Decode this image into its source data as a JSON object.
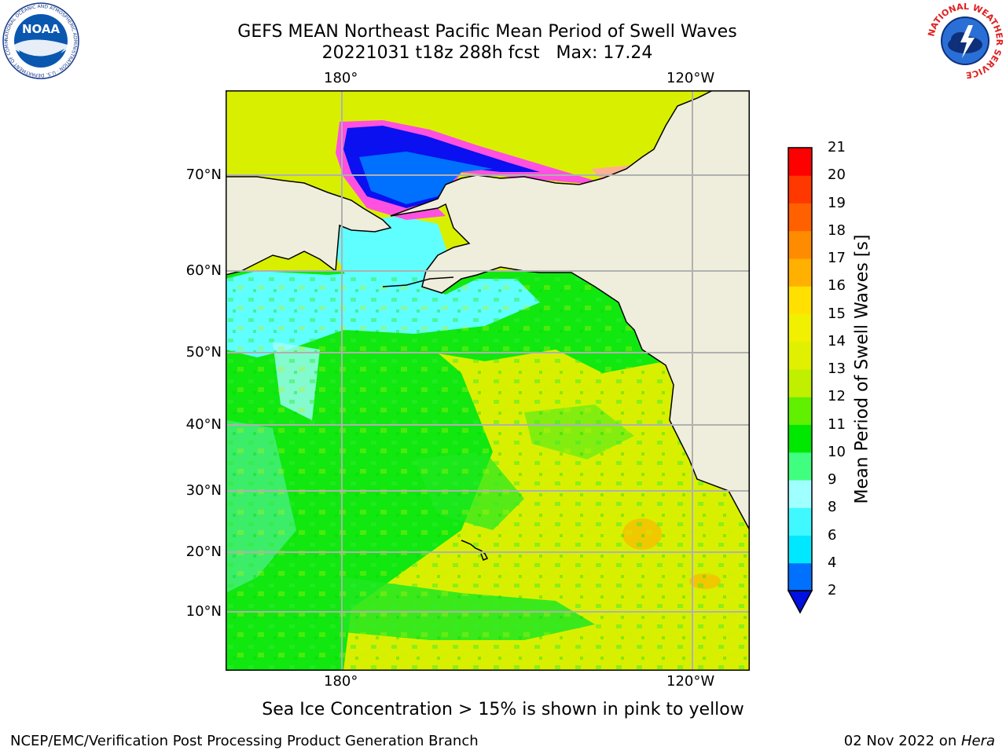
{
  "title_line1": "GEFS MEAN Northeast Pacific Mean Period of Swell Waves",
  "title_line2": "20221031 t18z 288h fcst   Max: 17.24",
  "lon_ticks_top": [
    "180°",
    "120°W"
  ],
  "lon_ticks_bottom": [
    "180°",
    "120°W"
  ],
  "lat_ticks": [
    "70°N",
    "60°N",
    "50°N",
    "40°N",
    "30°N",
    "20°N",
    "10°N"
  ],
  "colorbar": {
    "title": "Mean Period of Swell Waves [s]",
    "tick_labels": [
      "2",
      "4",
      "6",
      "8",
      "9",
      "10",
      "11",
      "12",
      "13",
      "14",
      "15",
      "16",
      "17",
      "18",
      "19",
      "20",
      "21"
    ],
    "colors": [
      "#0010e0",
      "#0070ff",
      "#00e8ff",
      "#40f8ff",
      "#a0ffff",
      "#40ff80",
      "#00e800",
      "#60f000",
      "#c0f000",
      "#e0f000",
      "#f0f000",
      "#ffe000",
      "#ffb000",
      "#ff8c00",
      "#ff6000",
      "#ff3800",
      "#ff0000"
    ]
  },
  "note": "Sea Ice Concentration > 15% is shown in pink to yellow",
  "footer_left": "NCEP/EMC/Verification Post Processing Product Generation Branch",
  "footer_right_date": "02 Nov 2022 on ",
  "footer_right_host": "Hera",
  "logo_left": {
    "text": "NOAA",
    "ring_text": "NATIONAL OCEANIC AND ATMOSPHERIC ADMINISTRATION · U.S. DEPARTMENT OF COMMERCE"
  },
  "logo_right": {
    "ring_text": "NATIONAL WEATHER SERVICE"
  },
  "colors": {
    "land": "#efeedc",
    "ocean_green": "#10e810",
    "ocean_yellow": "#d8f000",
    "ocean_cyan": "#60ffff",
    "ice_blue": "#0040ff",
    "ice_pink": "#ff50e0"
  }
}
